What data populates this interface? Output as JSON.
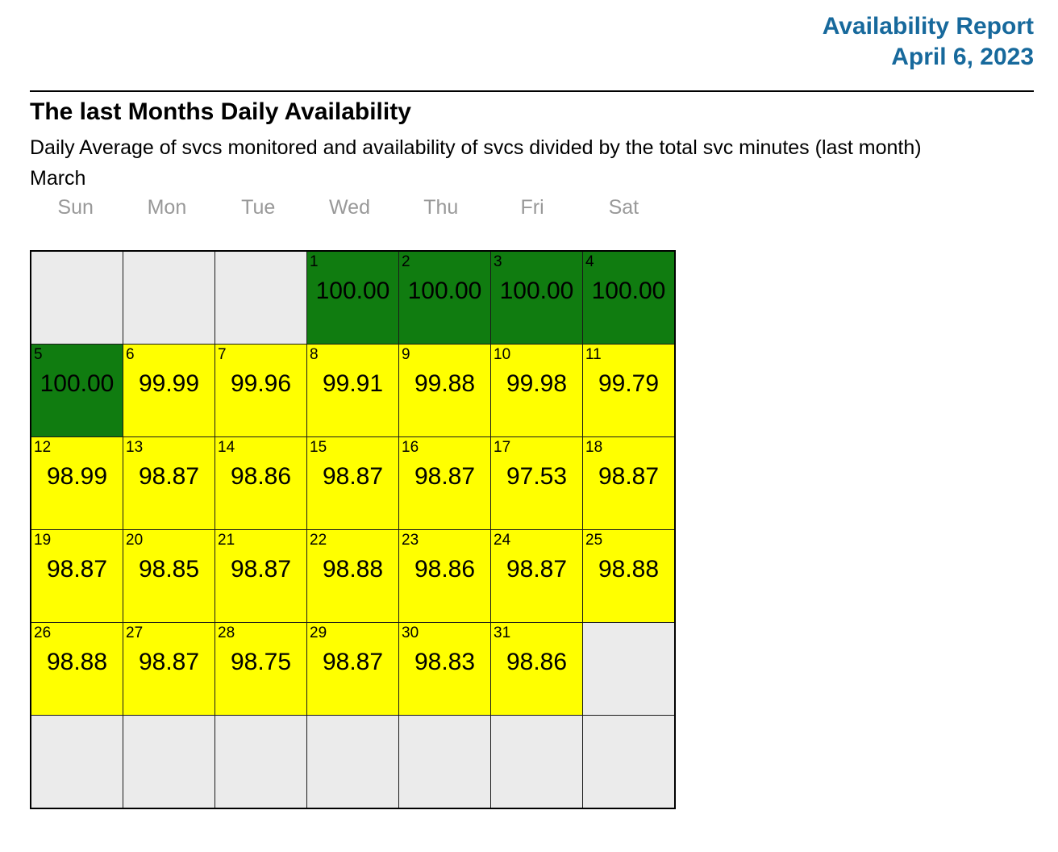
{
  "report": {
    "title": "Availability Report",
    "date": "April 6, 2023",
    "accent_color": "#17699c"
  },
  "section": {
    "heading": "The last Months Daily Availability",
    "subtitle": "Daily Average of svcs monitored and availability of svcs divided by the total svc minutes (last month)",
    "month": "March"
  },
  "calendar": {
    "day_headers": [
      "Sun",
      "Mon",
      "Tue",
      "Wed",
      "Thu",
      "Fri",
      "Sat"
    ],
    "colors": {
      "green": "#107c10",
      "yellow": "#ffff00",
      "empty": "#ebebeb"
    },
    "weeks": [
      [
        null,
        null,
        null,
        {
          "day": "1",
          "value": "100.00",
          "status": "green"
        },
        {
          "day": "2",
          "value": "100.00",
          "status": "green"
        },
        {
          "day": "3",
          "value": "100.00",
          "status": "green"
        },
        {
          "day": "4",
          "value": "100.00",
          "status": "green"
        }
      ],
      [
        {
          "day": "5",
          "value": "100.00",
          "status": "green"
        },
        {
          "day": "6",
          "value": "99.99",
          "status": "yellow"
        },
        {
          "day": "7",
          "value": "99.96",
          "status": "yellow"
        },
        {
          "day": "8",
          "value": "99.91",
          "status": "yellow"
        },
        {
          "day": "9",
          "value": "99.88",
          "status": "yellow"
        },
        {
          "day": "10",
          "value": "99.98",
          "status": "yellow"
        },
        {
          "day": "11",
          "value": "99.79",
          "status": "yellow"
        }
      ],
      [
        {
          "day": "12",
          "value": "98.99",
          "status": "yellow"
        },
        {
          "day": "13",
          "value": "98.87",
          "status": "yellow"
        },
        {
          "day": "14",
          "value": "98.86",
          "status": "yellow"
        },
        {
          "day": "15",
          "value": "98.87",
          "status": "yellow"
        },
        {
          "day": "16",
          "value": "98.87",
          "status": "yellow"
        },
        {
          "day": "17",
          "value": "97.53",
          "status": "yellow"
        },
        {
          "day": "18",
          "value": "98.87",
          "status": "yellow"
        }
      ],
      [
        {
          "day": "19",
          "value": "98.87",
          "status": "yellow"
        },
        {
          "day": "20",
          "value": "98.85",
          "status": "yellow"
        },
        {
          "day": "21",
          "value": "98.87",
          "status": "yellow"
        },
        {
          "day": "22",
          "value": "98.88",
          "status": "yellow"
        },
        {
          "day": "23",
          "value": "98.86",
          "status": "yellow"
        },
        {
          "day": "24",
          "value": "98.87",
          "status": "yellow"
        },
        {
          "day": "25",
          "value": "98.88",
          "status": "yellow"
        }
      ],
      [
        {
          "day": "26",
          "value": "98.88",
          "status": "yellow"
        },
        {
          "day": "27",
          "value": "98.87",
          "status": "yellow"
        },
        {
          "day": "28",
          "value": "98.75",
          "status": "yellow"
        },
        {
          "day": "29",
          "value": "98.87",
          "status": "yellow"
        },
        {
          "day": "30",
          "value": "98.83",
          "status": "yellow"
        },
        {
          "day": "31",
          "value": "98.86",
          "status": "yellow"
        },
        null
      ],
      [
        null,
        null,
        null,
        null,
        null,
        null,
        null
      ]
    ]
  }
}
